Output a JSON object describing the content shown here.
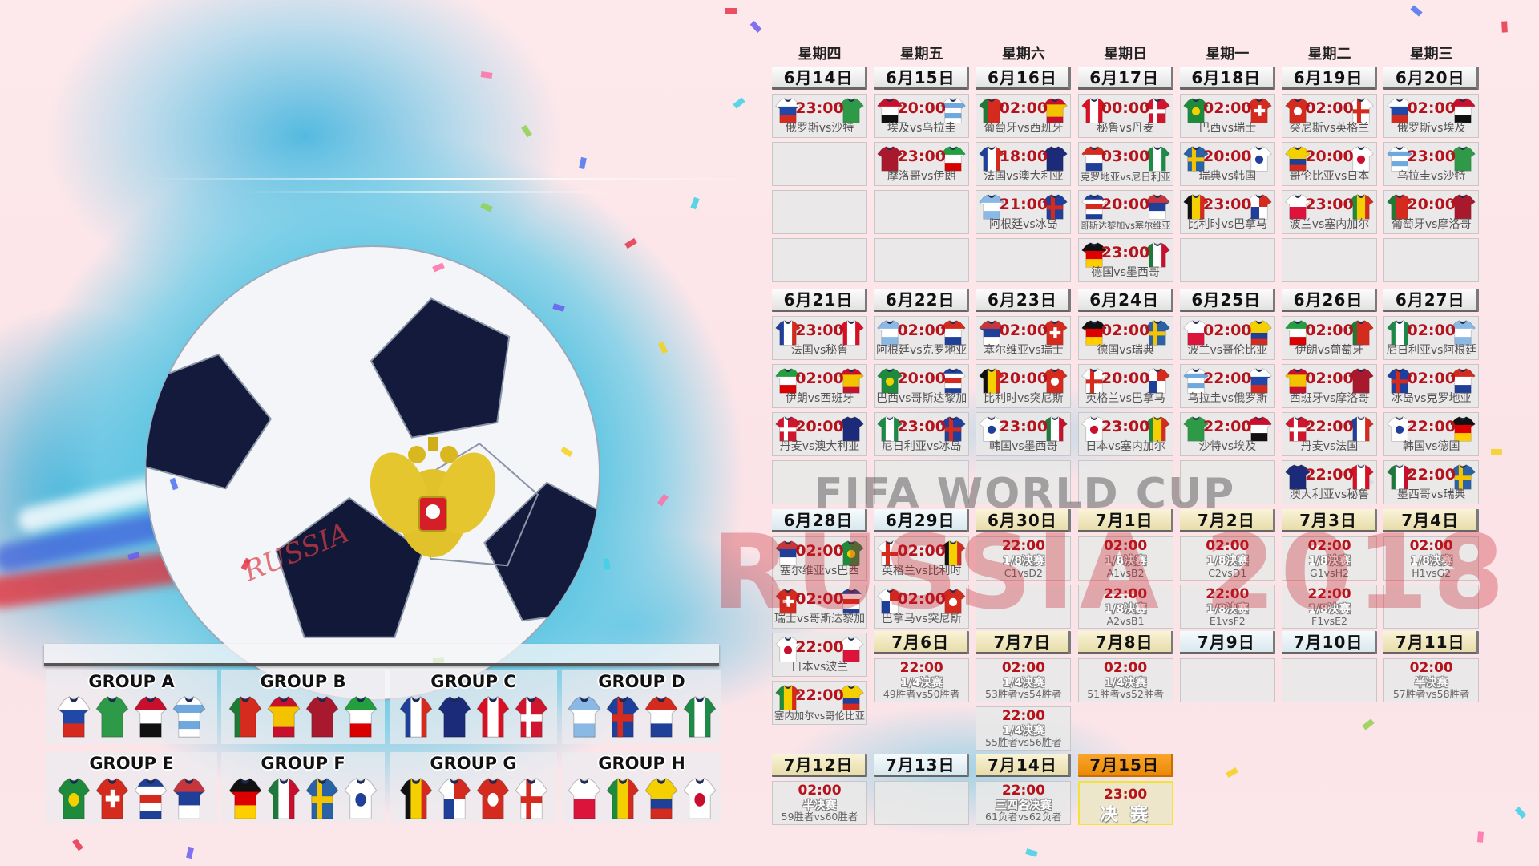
{
  "watermark": {
    "line1": "FIFA WORLD CUP",
    "line2": "RUSSIA 2018",
    "ball_text": "RUSSIA"
  },
  "colors": {
    "time": "#b5121b",
    "final_header": "#f39a12",
    "pentagon": "#141a3c",
    "emblem_gold": "#e2c22a"
  },
  "weekdays": [
    "星期四",
    "星期五",
    "星期六",
    "星期日",
    "星期一",
    "星期二",
    "星期三"
  ],
  "teams": {
    "俄罗斯": {
      "p": "h",
      "c": [
        "#ffffff",
        "#1f48a8",
        "#d52b1e"
      ]
    },
    "沙特": {
      "p": "s",
      "c": [
        "#2e9a48"
      ]
    },
    "埃及": {
      "p": "h",
      "c": [
        "#c8102e",
        "#ffffff",
        "#111111"
      ]
    },
    "乌拉圭": {
      "p": "h",
      "c": [
        "#ffffff",
        "#6fa8dc",
        "#ffffff",
        "#6fa8dc",
        "#ffffff"
      ]
    },
    "葡萄牙": {
      "p": "v",
      "c": [
        "#1e7a34",
        "#d52b1e",
        "#d52b1e"
      ]
    },
    "西班牙": {
      "p": "h",
      "c": [
        "#c8102e",
        "#f3c300",
        "#f3c300",
        "#c8102e"
      ]
    },
    "摩洛哥": {
      "p": "s",
      "c": [
        "#a8192e"
      ]
    },
    "伊朗": {
      "p": "h",
      "c": [
        "#239f40",
        "#ffffff",
        "#da0000"
      ]
    },
    "法国": {
      "p": "v",
      "c": [
        "#1f3f99",
        "#ffffff",
        "#d52b1e"
      ]
    },
    "澳大利亚": {
      "p": "s",
      "c": [
        "#1c2a7a"
      ]
    },
    "秘鲁": {
      "p": "v",
      "c": [
        "#d91023",
        "#ffffff",
        "#d91023"
      ]
    },
    "丹麦": {
      "p": "x",
      "c": [
        "#d0162e",
        "#ffffff"
      ]
    },
    "阿根廷": {
      "p": "h",
      "c": [
        "#8ab9e6",
        "#ffffff",
        "#8ab9e6"
      ]
    },
    "冰岛": {
      "p": "x",
      "c": [
        "#1e3f9e",
        "#d52b1e"
      ]
    },
    "克罗地亚": {
      "p": "h",
      "c": [
        "#d52b1e",
        "#ffffff",
        "#1f3f99"
      ]
    },
    "尼日利亚": {
      "p": "v",
      "c": [
        "#1e8a48",
        "#ffffff",
        "#1e8a48"
      ]
    },
    "巴西": {
      "p": "d",
      "c": [
        "#1e8a3c",
        "#f5d000"
      ]
    },
    "瑞士": {
      "p": "p",
      "c": [
        "#d52b1e",
        "#ffffff"
      ]
    },
    "哥斯达黎加": {
      "p": "h",
      "c": [
        "#1f3f99",
        "#ffffff",
        "#d52b1e",
        "#ffffff",
        "#1f3f99"
      ]
    },
    "塞尔维亚": {
      "p": "h",
      "c": [
        "#c6363c",
        "#1f3f99",
        "#ffffff"
      ]
    },
    "德国": {
      "p": "h",
      "c": [
        "#111111",
        "#dd0000",
        "#ffce00"
      ]
    },
    "墨西哥": {
      "p": "v",
      "c": [
        "#1e7a3c",
        "#ffffff",
        "#c8102e"
      ]
    },
    "瑞典": {
      "p": "x",
      "c": [
        "#2a62a8",
        "#f5c400"
      ]
    },
    "韩国": {
      "p": "d",
      "c": [
        "#ffffff",
        "#1f3f99"
      ]
    },
    "比利时": {
      "p": "v",
      "c": [
        "#111111",
        "#f5d000",
        "#d52b1e"
      ]
    },
    "巴拿马": {
      "p": "q",
      "c": [
        "#ffffff",
        "#d52b1e",
        "#1f3f99",
        "#ffffff"
      ]
    },
    "突尼斯": {
      "p": "d",
      "c": [
        "#d52b1e",
        "#ffffff"
      ]
    },
    "英格兰": {
      "p": "x",
      "c": [
        "#ffffff",
        "#d52b1e"
      ]
    },
    "波兰": {
      "p": "h",
      "c": [
        "#ffffff",
        "#dc143c"
      ]
    },
    "塞内加尔": {
      "p": "v",
      "c": [
        "#1e8a3c",
        "#f5d000",
        "#d52b1e"
      ]
    },
    "哥伦比亚": {
      "p": "h",
      "c": [
        "#f5d000",
        "#f5d000",
        "#1f3f99",
        "#d52b1e"
      ]
    },
    "日本": {
      "p": "d",
      "c": [
        "#ffffff",
        "#c8102e"
      ]
    }
  },
  "days": [
    {
      "date": "6月14日",
      "style": "plain",
      "slots": [
        {
          "time": "23:00",
          "home": "俄罗斯",
          "away": "沙特",
          "label": "俄罗斯vs沙特"
        },
        {},
        {},
        {}
      ]
    },
    {
      "date": "6月15日",
      "style": "plain",
      "slots": [
        {
          "time": "20:00",
          "home": "埃及",
          "away": "乌拉圭",
          "label": "埃及vs乌拉圭"
        },
        {
          "time": "23:00",
          "home": "摩洛哥",
          "away": "伊朗",
          "label": "摩洛哥vs伊朗"
        },
        {},
        {}
      ]
    },
    {
      "date": "6月16日",
      "style": "plain",
      "slots": [
        {
          "time": "02:00",
          "home": "葡萄牙",
          "away": "西班牙",
          "label": "葡萄牙vs西班牙"
        },
        {
          "time": "18:00",
          "home": "法国",
          "away": "澳大利亚",
          "label": "法国vs澳大利亚"
        },
        {
          "time": "21:00",
          "home": "阿根廷",
          "away": "冰岛",
          "label": "阿根廷vs冰岛"
        },
        {}
      ]
    },
    {
      "date": "6月17日",
      "style": "plain",
      "slots": [
        {
          "time": "00:00",
          "home": "秘鲁",
          "away": "丹麦",
          "label": "秘鲁vs丹麦"
        },
        {
          "time": "03:00",
          "home": "克罗地亚",
          "away": "尼日利亚",
          "label": "克罗地亚vs尼日利亚"
        },
        {
          "time": "20:00",
          "home": "哥斯达黎加",
          "away": "塞尔维亚",
          "label": "哥斯达黎加vs塞尔维亚"
        },
        {
          "time": "23:00",
          "home": "德国",
          "away": "墨西哥",
          "label": "德国vs墨西哥"
        }
      ]
    },
    {
      "date": "6月18日",
      "style": "plain",
      "slots": [
        {
          "time": "02:00",
          "home": "巴西",
          "away": "瑞士",
          "label": "巴西vs瑞士"
        },
        {
          "time": "20:00",
          "home": "瑞典",
          "away": "韩国",
          "label": "瑞典vs韩国"
        },
        {
          "time": "23:00",
          "home": "比利时",
          "away": "巴拿马",
          "label": "比利时vs巴拿马"
        },
        {}
      ]
    },
    {
      "date": "6月19日",
      "style": "plain",
      "slots": [
        {
          "time": "02:00",
          "home": "突尼斯",
          "away": "英格兰",
          "label": "突尼斯vs英格兰"
        },
        {
          "time": "20:00",
          "home": "哥伦比亚",
          "away": "日本",
          "label": "哥伦比亚vs日本"
        },
        {
          "time": "23:00",
          "home": "波兰",
          "away": "塞内加尔",
          "label": "波兰vs塞内加尔"
        },
        {}
      ]
    },
    {
      "date": "6月20日",
      "style": "plain",
      "slots": [
        {
          "time": "02:00",
          "home": "俄罗斯",
          "away": "埃及",
          "label": "俄罗斯vs埃及"
        },
        {
          "time": "23:00",
          "home": "乌拉圭",
          "away": "沙特",
          "label": "乌拉圭vs沙特"
        },
        {
          "time": "20:00",
          "home": "葡萄牙",
          "away": "摩洛哥",
          "label": "葡萄牙vs摩洛哥"
        },
        {}
      ]
    },
    {
      "date": "6月21日",
      "style": "plain",
      "slots": [
        {
          "time": "23:00",
          "home": "法国",
          "away": "秘鲁",
          "label": "法国vs秘鲁"
        },
        {
          "time": "02:00",
          "home": "伊朗",
          "away": "西班牙",
          "label": "伊朗vs西班牙"
        },
        {
          "time": "20:00",
          "home": "丹麦",
          "away": "澳大利亚",
          "label": "丹麦vs澳大利亚"
        },
        {}
      ]
    },
    {
      "date": "6月22日",
      "style": "plain",
      "slots": [
        {
          "time": "02:00",
          "home": "阿根廷",
          "away": "克罗地亚",
          "label": "阿根廷vs克罗地亚"
        },
        {
          "time": "20:00",
          "home": "巴西",
          "away": "哥斯达黎加",
          "label": "巴西vs哥斯达黎加"
        },
        {
          "time": "23:00",
          "home": "尼日利亚",
          "away": "冰岛",
          "label": "尼日利亚vs冰岛"
        },
        {}
      ]
    },
    {
      "date": "6月23日",
      "style": "plain",
      "slots": [
        {
          "time": "02:00",
          "home": "塞尔维亚",
          "away": "瑞士",
          "label": "塞尔维亚vs瑞士"
        },
        {
          "time": "20:00",
          "home": "比利时",
          "away": "突尼斯",
          "label": "比利时vs突尼斯"
        },
        {
          "time": "23:00",
          "home": "韩国",
          "away": "墨西哥",
          "label": "韩国vs墨西哥"
        },
        {}
      ]
    },
    {
      "date": "6月24日",
      "style": "plain",
      "slots": [
        {
          "time": "02:00",
          "home": "德国",
          "away": "瑞典",
          "label": "德国vs瑞典"
        },
        {
          "time": "20:00",
          "home": "英格兰",
          "away": "巴拿马",
          "label": "英格兰vs巴拿马"
        },
        {
          "time": "23:00",
          "home": "日本",
          "away": "塞内加尔",
          "label": "日本vs塞内加尔"
        },
        {}
      ]
    },
    {
      "date": "6月25日",
      "style": "plain",
      "slots": [
        {
          "time": "02:00",
          "home": "波兰",
          "away": "哥伦比亚",
          "label": "波兰vs哥伦比亚"
        },
        {
          "time": "22:00",
          "home": "乌拉圭",
          "away": "俄罗斯",
          "label": "乌拉圭vs俄罗斯"
        },
        {
          "time": "22:00",
          "home": "沙特",
          "away": "埃及",
          "label": "沙特vs埃及"
        },
        {}
      ]
    },
    {
      "date": "6月26日",
      "style": "plain",
      "slots": [
        {
          "time": "02:00",
          "home": "伊朗",
          "away": "葡萄牙",
          "label": "伊朗vs葡萄牙"
        },
        {
          "time": "02:00",
          "home": "西班牙",
          "away": "摩洛哥",
          "label": "西班牙vs摩洛哥"
        },
        {
          "time": "22:00",
          "home": "丹麦",
          "away": "法国",
          "label": "丹麦vs法国"
        },
        {
          "time": "22:00",
          "home": "澳大利亚",
          "away": "秘鲁",
          "label": "澳大利亚vs秘鲁"
        }
      ]
    },
    {
      "date": "6月27日",
      "style": "plain",
      "slots": [
        {
          "time": "02:00",
          "home": "尼日利亚",
          "away": "阿根廷",
          "label": "尼日利亚vs阿根廷"
        },
        {
          "time": "02:00",
          "home": "冰岛",
          "away": "克罗地亚",
          "label": "冰岛vs克罗地亚"
        },
        {
          "time": "22:00",
          "home": "韩国",
          "away": "德国",
          "label": "韩国vs德国"
        },
        {
          "time": "22:00",
          "home": "墨西哥",
          "away": "瑞典",
          "label": "墨西哥vs瑞典"
        }
      ]
    },
    {
      "date": "6月28日",
      "style": "light",
      "slots": [
        {
          "time": "02:00",
          "home": "塞尔维亚",
          "away": "巴西",
          "label": "塞尔维亚vs巴西"
        },
        {
          "time": "02:00",
          "home": "瑞士",
          "away": "哥斯达黎加",
          "label": "瑞士vs哥斯达黎加"
        },
        {
          "time": "22:00",
          "home": "日本",
          "away": "波兰",
          "label": "日本vs波兰"
        },
        {
          "time": "22:00",
          "home": "塞内加尔",
          "away": "哥伦比亚",
          "label": "塞内加尔vs哥伦比亚"
        }
      ]
    },
    {
      "date": "6月29日",
      "style": "light",
      "slots": [
        {
          "time": "02:00",
          "home": "英格兰",
          "away": "比利时",
          "label": "英格兰vs比利时"
        },
        {
          "time": "02:00",
          "home": "巴拿马",
          "away": "突尼斯",
          "label": "巴拿马vs突尼斯"
        }
      ]
    },
    {
      "date": "6月30日",
      "style": "gold",
      "slots": [
        {
          "time": "22:00",
          "stage": "1/8决赛",
          "pair": "C1vsD2"
        },
        {}
      ]
    },
    {
      "date": "7月1日",
      "style": "gold",
      "slots": [
        {
          "time": "02:00",
          "stage": "1/8决赛",
          "pair": "A1vsB2"
        },
        {
          "time": "22:00",
          "stage": "1/8决赛",
          "pair": "A2vsB1"
        }
      ]
    },
    {
      "date": "7月2日",
      "style": "gold",
      "slots": [
        {
          "time": "02:00",
          "stage": "1/8决赛",
          "pair": "C2vsD1"
        },
        {
          "time": "22:00",
          "stage": "1/8决赛",
          "pair": "E1vsF2"
        }
      ]
    },
    {
      "date": "7月3日",
      "style": "gold",
      "slots": [
        {
          "time": "02:00",
          "stage": "1/8决赛",
          "pair": "G1vsH2"
        },
        {
          "time": "22:00",
          "stage": "1/8决赛",
          "pair": "F1vsE2"
        }
      ]
    },
    {
      "date": "7月4日",
      "style": "gold",
      "slots": [
        {
          "time": "02:00",
          "stage": "1/8决赛",
          "pair": "H1vsG2"
        },
        {}
      ]
    },
    {
      "date": "7月6日",
      "style": "gold",
      "slots": [
        {
          "time": "22:00",
          "stage": "1/4决赛",
          "pair": "49胜者vs50胜者"
        }
      ]
    },
    {
      "date": "7月7日",
      "style": "gold",
      "slots": [
        {
          "time": "02:00",
          "stage": "1/4决赛",
          "pair": "53胜者vs54胜者"
        },
        {
          "time": "22:00",
          "stage": "1/4决赛",
          "pair": "55胜者vs56胜者"
        }
      ]
    },
    {
      "date": "7月8日",
      "style": "gold",
      "slots": [
        {
          "time": "02:00",
          "stage": "1/4决赛",
          "pair": "51胜者vs52胜者"
        }
      ]
    },
    {
      "date": "7月9日",
      "style": "light",
      "slots": [
        {}
      ]
    },
    {
      "date": "7月10日",
      "style": "light",
      "slots": [
        {}
      ]
    },
    {
      "date": "7月11日",
      "style": "gold",
      "slots": [
        {
          "time": "02:00",
          "stage": "半决赛",
          "pair": "57胜者vs58胜者"
        }
      ]
    },
    {
      "date": "7月12日",
      "style": "gold",
      "slots": [
        {
          "time": "02:00",
          "stage": "半决赛",
          "pair": "59胜者vs60胜者"
        }
      ]
    },
    {
      "date": "7月13日",
      "style": "light",
      "slots": [
        {}
      ]
    },
    {
      "date": "7月14日",
      "style": "gold",
      "slots": [
        {
          "time": "22:00",
          "stage": "三四名决赛",
          "pair": "61负者vs62负者"
        }
      ]
    },
    {
      "date": "7月15日",
      "style": "final",
      "slots": [
        {
          "time": "23:00",
          "final": "决 赛"
        }
      ]
    }
  ],
  "groups": [
    {
      "name": "GROUP A",
      "teams": [
        "俄罗斯",
        "沙特",
        "埃及",
        "乌拉圭"
      ]
    },
    {
      "name": "GROUP B",
      "teams": [
        "葡萄牙",
        "西班牙",
        "摩洛哥",
        "伊朗"
      ]
    },
    {
      "name": "GROUP C",
      "teams": [
        "法国",
        "澳大利亚",
        "秘鲁",
        "丹麦"
      ]
    },
    {
      "name": "GROUP D",
      "teams": [
        "阿根廷",
        "冰岛",
        "克罗地亚",
        "尼日利亚"
      ]
    },
    {
      "name": "GROUP E",
      "teams": [
        "巴西",
        "瑞士",
        "哥斯达黎加",
        "塞尔维亚"
      ]
    },
    {
      "name": "GROUP F",
      "teams": [
        "德国",
        "墨西哥",
        "瑞典",
        "韩国"
      ]
    },
    {
      "name": "GROUP G",
      "teams": [
        "比利时",
        "巴拿马",
        "突尼斯",
        "英格兰"
      ]
    },
    {
      "name": "GROUP H",
      "teams": [
        "波兰",
        "塞内加尔",
        "哥伦比亚",
        "日本"
      ]
    }
  ]
}
